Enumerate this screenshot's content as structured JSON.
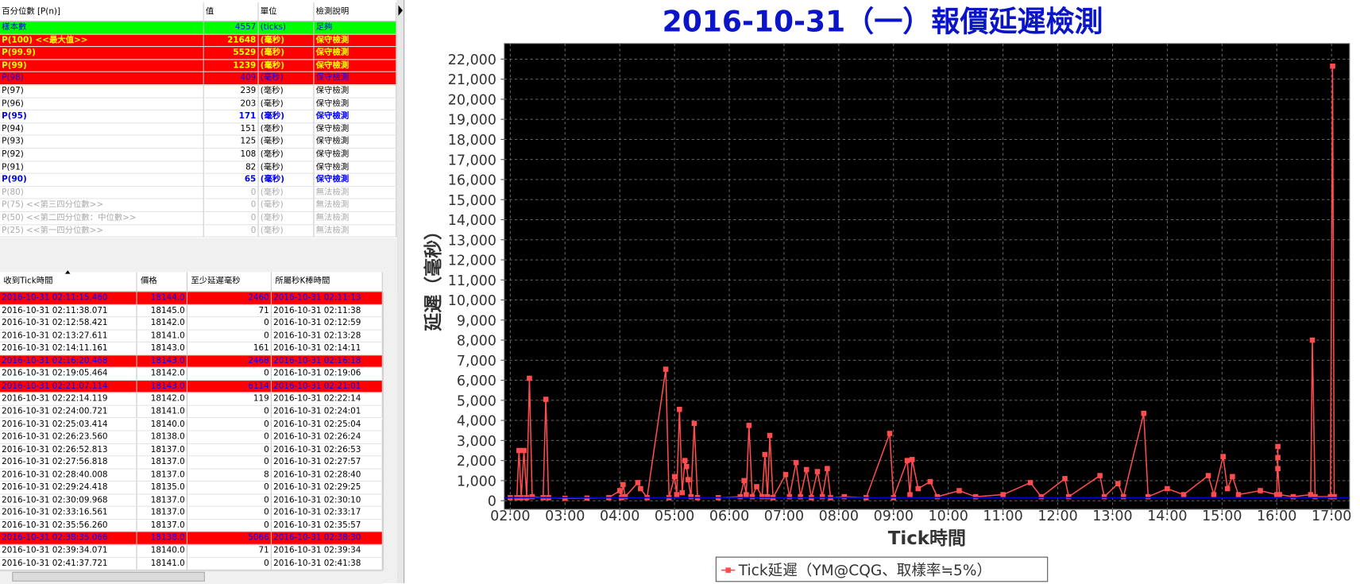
{
  "percentile_table": {
    "headers": [
      "百分位數 [P(n)]",
      "值",
      "單位",
      "檢測說明"
    ],
    "rows": [
      [
        "樣本數",
        "4557",
        "(ticks)",
        "足夠"
      ],
      [
        "P(100)  <<最大值>>",
        "21648",
        "(毫秒)",
        "保守檢測"
      ],
      [
        "P(99.9)",
        "5529",
        "(毫秒)",
        "保守檢測"
      ],
      [
        "P(99)",
        "1239",
        "(毫秒)",
        "保守檢測"
      ],
      [
        "P(98)",
        "409",
        "(毫秒)",
        "保守檢測"
      ],
      [
        "P(97)",
        "239",
        "(毫秒)",
        "保守檢測"
      ],
      [
        "P(96)",
        "203",
        "(毫秒)",
        "保守檢測"
      ],
      [
        "P(95)",
        "171",
        "(毫秒)",
        "保守檢測"
      ],
      [
        "P(94)",
        "151",
        "(毫秒)",
        "保守檢測"
      ],
      [
        "P(93)",
        "125",
        "(毫秒)",
        "保守檢測"
      ],
      [
        "P(92)",
        "108",
        "(毫秒)",
        "保守檢測"
      ],
      [
        "P(91)",
        "82",
        "(毫秒)",
        "保守檢測"
      ],
      [
        "P(90)",
        "65",
        "(毫秒)",
        "保守檢測"
      ],
      [
        "P(80)",
        "0",
        "(毫秒)",
        "無法檢測"
      ],
      [
        "P(75)  <<第三四分位數>>",
        "0",
        "(毫秒)",
        "無法檢測"
      ],
      [
        "P(50)  <<第二四分位數：中位數>>",
        "0",
        "(毫秒)",
        "無法檢測"
      ],
      [
        "P(25)  <<第一四分位數>>",
        "0",
        "(毫秒)",
        "無法檢測"
      ]
    ],
    "row_styles": [
      "green",
      "max",
      "max",
      "max",
      "warn",
      "",
      "",
      "blue",
      "",
      "",
      "",
      "",
      "blue",
      "na",
      "na",
      "na",
      "na"
    ]
  },
  "tick_table": {
    "headers": [
      "收到Tick時間",
      "價格",
      "至少延遲毫秒",
      "所屬秒K棒時間"
    ],
    "rows": [
      [
        "2016-10-31 02:11:15.460",
        "18144.0",
        "2460",
        "2016-10-31 02:11:13"
      ],
      [
        "2016-10-31 02:11:38.071",
        "18145.0",
        "71",
        "2016-10-31 02:11:38"
      ],
      [
        "2016-10-31 02:12:58.421",
        "18142.0",
        "0",
        "2016-10-31 02:12:59"
      ],
      [
        "2016-10-31 02:13:27.611",
        "18141.0",
        "0",
        "2016-10-31 02:13:28"
      ],
      [
        "2016-10-31 02:14:11.161",
        "18143.0",
        "161",
        "2016-10-31 02:14:11"
      ],
      [
        "2016-10-31 02:16:20.468",
        "18143.0",
        "2468",
        "2016-10-31 02:16:18"
      ],
      [
        "2016-10-31 02:19:05.464",
        "18142.0",
        "0",
        "2016-10-31 02:19:06"
      ],
      [
        "2016-10-31 02:21:07.114",
        "18143.0",
        "6114",
        "2016-10-31 02:21:01"
      ],
      [
        "2016-10-31 02:22:14.119",
        "18142.0",
        "119",
        "2016-10-31 02:22:14"
      ],
      [
        "2016-10-31 02:24:00.721",
        "18141.0",
        "0",
        "2016-10-31 02:24:01"
      ],
      [
        "2016-10-31 02:25:03.414",
        "18140.0",
        "0",
        "2016-10-31 02:25:04"
      ],
      [
        "2016-10-31 02:26:23.560",
        "18138.0",
        "0",
        "2016-10-31 02:26:24"
      ],
      [
        "2016-10-31 02:26:52.813",
        "18137.0",
        "0",
        "2016-10-31 02:26:53"
      ],
      [
        "2016-10-31 02:27:56.818",
        "18137.0",
        "0",
        "2016-10-31 02:27:57"
      ],
      [
        "2016-10-31 02:28:40.008",
        "18137.0",
        "8",
        "2016-10-31 02:28:40"
      ],
      [
        "2016-10-31 02:29:24.418",
        "18135.0",
        "0",
        "2016-10-31 02:29:25"
      ],
      [
        "2016-10-31 02:30:09.968",
        "18137.0",
        "0",
        "2016-10-31 02:30:10"
      ],
      [
        "2016-10-31 02:33:16.561",
        "18137.0",
        "0",
        "2016-10-31 02:33:17"
      ],
      [
        "2016-10-31 02:35:56.260",
        "18137.0",
        "0",
        "2016-10-31 02:35:57"
      ],
      [
        "2016-10-31 02:38:35.066",
        "18138.0",
        "5066",
        "2016-10-31 02:38:30"
      ],
      [
        "2016-10-31 02:39:34.071",
        "18140.0",
        "71",
        "2016-10-31 02:39:34"
      ],
      [
        "2016-10-31 02:41:37.721",
        "18141.0",
        "0",
        "2016-10-31 02:41:38"
      ]
    ],
    "alert": [
      true,
      false,
      false,
      false,
      false,
      true,
      false,
      true,
      false,
      false,
      false,
      false,
      false,
      false,
      false,
      false,
      false,
      false,
      false,
      true,
      false,
      false
    ]
  },
  "chart_data": {
    "type": "line",
    "title": "2016-10-31（一）報價延遲檢測",
    "x_label": "Tick時間",
    "y_label": "延遲（毫秒）",
    "xlim": [
      1.89,
      17.33
    ],
    "ylim": [
      -430,
      22780
    ],
    "xticks": [
      {
        "value": 2,
        "label": "02:00"
      },
      {
        "value": 3,
        "label": "03:00"
      },
      {
        "value": 4,
        "label": "04:00"
      },
      {
        "value": 5,
        "label": "05:00"
      },
      {
        "value": 6,
        "label": "06:00"
      },
      {
        "value": 7,
        "label": "07:00"
      },
      {
        "value": 8,
        "label": "08:00"
      },
      {
        "value": 9,
        "label": "09:00"
      },
      {
        "value": 10,
        "label": "10:00"
      },
      {
        "value": 11,
        "label": "11:00"
      },
      {
        "value": 12,
        "label": "12:00"
      },
      {
        "value": 13,
        "label": "13:00"
      },
      {
        "value": 14,
        "label": "14:00"
      },
      {
        "value": 15,
        "label": "15:00"
      },
      {
        "value": 16,
        "label": "16:00"
      },
      {
        "value": 17,
        "label": "17:00"
      }
    ],
    "yticks": [
      0,
      {
        "value": 1000,
        "label": "1,000"
      },
      {
        "value": 2000,
        "label": "2,000"
      },
      {
        "value": 3000,
        "label": "3,000"
      },
      {
        "value": 4000,
        "label": "4,000"
      },
      {
        "value": 5000,
        "label": "5,000"
      },
      {
        "value": 6000,
        "label": "6,000"
      },
      {
        "value": 7000,
        "label": "7,000"
      },
      {
        "value": 8000,
        "label": "8,000"
      },
      {
        "value": 9000,
        "label": "9,000"
      },
      {
        "value": 10000,
        "label": "10,000"
      },
      {
        "value": 11000,
        "label": "11,000"
      },
      {
        "value": 12000,
        "label": "12,000"
      },
      {
        "value": 13000,
        "label": "13,000"
      },
      {
        "value": 14000,
        "label": "14,000"
      },
      {
        "value": 15000,
        "label": "15,000"
      },
      {
        "value": 16000,
        "label": "16,000"
      },
      {
        "value": 17000,
        "label": "17,000"
      },
      {
        "value": 18000,
        "label": "18,000"
      },
      {
        "value": 19000,
        "label": "19,000"
      },
      {
        "value": 20000,
        "label": "20,000"
      },
      {
        "value": 21000,
        "label": "21,000"
      },
      {
        "value": 22000,
        "label": "22,000"
      }
    ],
    "grid": true,
    "reference_line": {
      "value": 150,
      "color": "#0000cc"
    },
    "series": [
      {
        "name": "Tick延遲（YM@CQG、取樣率≒5%）",
        "color": "#ff4d4d",
        "x": [
          2.0,
          2.12,
          2.16,
          2.2,
          2.25,
          2.3,
          2.35,
          2.4,
          2.6,
          2.65,
          2.7,
          3.0,
          3.4,
          3.8,
          4.0,
          4.03,
          4.06,
          4.1,
          4.33,
          4.38,
          4.5,
          4.84,
          4.9,
          5.0,
          5.04,
          5.09,
          5.14,
          5.19,
          5.22,
          5.25,
          5.3,
          5.36,
          5.42,
          5.8,
          6.2,
          6.27,
          6.31,
          6.36,
          6.42,
          6.5,
          6.6,
          6.65,
          6.7,
          6.74,
          6.8,
          7.03,
          7.1,
          7.22,
          7.3,
          7.41,
          7.5,
          7.61,
          7.7,
          7.79,
          7.85,
          8.1,
          8.5,
          8.93,
          9.0,
          9.25,
          9.3,
          9.34,
          9.45,
          9.67,
          9.8,
          10.2,
          10.5,
          11.0,
          11.5,
          11.7,
          12.13,
          12.2,
          12.77,
          12.85,
          13.1,
          13.2,
          13.57,
          13.65,
          14.0,
          14.3,
          14.75,
          14.85,
          15.02,
          15.1,
          15.19,
          15.3,
          15.7,
          16.0,
          16.02,
          16.02,
          16.02,
          16.05,
          16.3,
          16.62,
          16.65,
          16.7,
          16.98,
          17.02,
          17.05
        ],
        "values": [
          150,
          150,
          2500,
          150,
          2500,
          150,
          6100,
          200,
          150,
          5050,
          150,
          120,
          130,
          150,
          500,
          150,
          800,
          200,
          900,
          600,
          150,
          6550,
          150,
          1200,
          300,
          4550,
          400,
          2000,
          1700,
          1050,
          200,
          3850,
          150,
          150,
          200,
          1000,
          300,
          3750,
          200,
          700,
          200,
          2300,
          200,
          3250,
          150,
          1300,
          200,
          1900,
          200,
          1550,
          150,
          1450,
          200,
          1600,
          150,
          200,
          150,
          3350,
          150,
          2000,
          300,
          2050,
          600,
          950,
          200,
          500,
          200,
          300,
          900,
          200,
          1100,
          200,
          1250,
          200,
          850,
          200,
          4350,
          200,
          600,
          300,
          1250,
          300,
          2200,
          600,
          1200,
          300,
          500,
          300,
          2700,
          2150,
          1600,
          300,
          200,
          300,
          8000,
          200,
          200,
          21650,
          200
        ]
      }
    ]
  }
}
